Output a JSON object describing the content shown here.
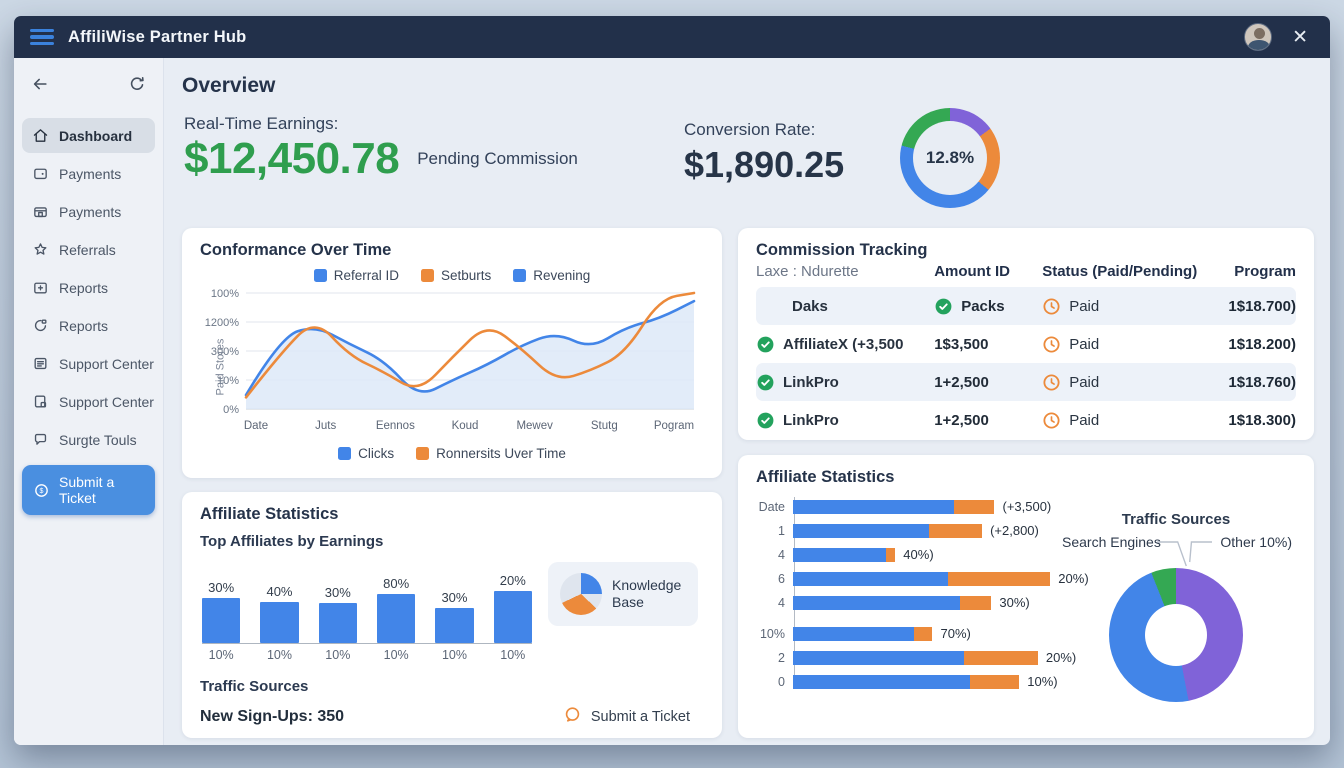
{
  "titlebar": {
    "title": "AffiliWise Partner Hub"
  },
  "sidebar": {
    "items": [
      {
        "icon": "home",
        "label": "Dashboard",
        "active": true
      },
      {
        "icon": "wallet",
        "label": "Payments",
        "active": false
      },
      {
        "icon": "bank",
        "label": "Payments",
        "active": false
      },
      {
        "icon": "star",
        "label": "Referrals",
        "active": false
      },
      {
        "icon": "folder",
        "label": "Reports",
        "active": false
      },
      {
        "icon": "cloud",
        "label": "Reports",
        "active": false
      },
      {
        "icon": "doc",
        "label": "Support Center",
        "active": false
      },
      {
        "icon": "copy",
        "label": "Support Center",
        "active": false
      },
      {
        "icon": "chat",
        "label": "Surgte Touls",
        "active": false
      }
    ],
    "cta": {
      "icon": "ticket",
      "label": "Submit a Ticket"
    }
  },
  "overview": {
    "title": "Overview",
    "earnings_label": "Real-Time Earnings:",
    "earnings_value": "$12,450.78",
    "earnings_note": "Pending Commission",
    "conversion_label": "Conversion Rate:",
    "conversion_value": "$1,890.25"
  },
  "commission": {
    "title": "Commission Tracking",
    "columns": [
      "Laxe : Ndurette",
      "Amount ID",
      "Status (Paid/Pending)",
      "Program"
    ],
    "rows": [
      {
        "name": "Daks",
        "name_check": false,
        "amount": "Packs",
        "amount_check": true,
        "status": "Paid",
        "program": "1$18.700)"
      },
      {
        "name": "AffiliateX (+3,500",
        "name_check": true,
        "amount": "1$3,500",
        "amount_check": false,
        "status": "Paid",
        "program": "1$18.200)"
      },
      {
        "name": "LinkPro",
        "name_check": true,
        "amount": "1+2,500",
        "amount_check": false,
        "status": "Paid",
        "program": "1$18.760)"
      },
      {
        "name": "LinkPro",
        "name_check": true,
        "amount": "1+2,500",
        "amount_check": false,
        "status": "Paid",
        "program": "1$18.300)"
      }
    ]
  },
  "affiliate_left": {
    "title": "Affiliate Statistics",
    "subtitle": "Top Affiliates by Earnings",
    "knowledge_label": "Knowledge Base",
    "traffic_title": "Traffic Sources",
    "signups_text": "New Sign-Ups: 350",
    "ticket_label": "Submit a Ticket"
  },
  "affiliate_right": {
    "title": "Affiliate Statistics",
    "donut_title": "Traffic Sources",
    "callout_left": "Search Engines",
    "callout_right": "Other 10%)"
  },
  "colors": {
    "blue": "#4285e8",
    "orange": "#ec8a3b",
    "green": "#34a853",
    "purple": "#8063d8",
    "money_green": "#2f9e4e",
    "navy": "#22304a"
  },
  "chart_data": [
    {
      "id": "conformance",
      "type": "line",
      "title": "Conformance Over Time",
      "legend_top": [
        {
          "label": "Referral ID",
          "color": "#4285e8"
        },
        {
          "label": "Setburts",
          "color": "#ec8a3b"
        },
        {
          "label": "Revening",
          "color": "#4285e8"
        }
      ],
      "legend_bottom": [
        {
          "label": "Clicks",
          "color": "#4285e8"
        },
        {
          "label": "Ronnersits Uver Time",
          "color": "#ec8a3b"
        }
      ],
      "x_labels": [
        "Date",
        "Juts",
        "Eennos",
        "Koud",
        "Mewev",
        "Stutg",
        "Pogram"
      ],
      "y_tick_labels_bottom_to_top": [
        "0%",
        "10%",
        "300%",
        "1200%",
        "100%"
      ],
      "ylabel": "Paid Stores",
      "ylim": [
        0,
        100
      ],
      "grid": true,
      "series": [
        {
          "name": "Clicks",
          "color": "#4285e8",
          "area_fill": true,
          "values": [
            12,
            62,
            72,
            56,
            42,
            10,
            25,
            38,
            55,
            66,
            52,
            70,
            78,
            93
          ]
        },
        {
          "name": "Ronnersits Uver Time",
          "color": "#ec8a3b",
          "area_fill": false,
          "values": [
            10,
            48,
            78,
            46,
            32,
            14,
            45,
            74,
            52,
            24,
            33,
            48,
            95,
            100
          ]
        }
      ]
    },
    {
      "id": "top_affiliates",
      "type": "bar",
      "title": "Top Affiliates by Earnings",
      "bar_color": "#4285e8",
      "top_labels": [
        "30%",
        "40%",
        "30%",
        "80%",
        "30%",
        "20%"
      ],
      "bottom_labels": [
        "10%",
        "10%",
        "10%",
        "10%",
        "10%",
        "10%"
      ],
      "values_pct_of_max": [
        86,
        78,
        76,
        94,
        68,
        100
      ]
    },
    {
      "id": "affiliate_stats_hbar",
      "type": "bar",
      "orientation": "horizontal",
      "stacked": true,
      "series_colors": {
        "blue": "#4285e8",
        "orange": "#ec8a3b"
      },
      "rows": [
        {
          "label": "Date",
          "blue": 52,
          "orange": 13,
          "annotation": "(+3,500)"
        },
        {
          "label": "1",
          "blue": 44,
          "orange": 17,
          "annotation": "(+2,800)"
        },
        {
          "label": "4",
          "blue": 30,
          "orange": 3,
          "annotation": "40%)"
        },
        {
          "label": "6",
          "blue": 50,
          "orange": 33,
          "annotation": "20%)"
        },
        {
          "label": "4",
          "blue": 54,
          "orange": 10,
          "annotation": "30%)"
        },
        {
          "label": "10%",
          "blue": 39,
          "orange": 6,
          "annotation": "70%)"
        },
        {
          "label": "2",
          "blue": 55,
          "orange": 24,
          "annotation": "20%)"
        },
        {
          "label": "0",
          "blue": 57,
          "orange": 16,
          "annotation": "10%)"
        }
      ]
    },
    {
      "id": "conversion_donut",
      "type": "pie",
      "center_label": "12.8%",
      "segments": [
        {
          "label": "purple",
          "value": 15,
          "color": "#8063d8"
        },
        {
          "label": "orange",
          "value": 21,
          "color": "#ec8a3b"
        },
        {
          "label": "blue",
          "value": 43,
          "color": "#4285e8"
        },
        {
          "label": "green",
          "value": 21,
          "color": "#34a853"
        }
      ]
    },
    {
      "id": "traffic_donut",
      "type": "pie",
      "title": "Traffic Sources",
      "segments": [
        {
          "label": "Other 10%)",
          "value": 47,
          "color": "#8063d8"
        },
        {
          "label": "",
          "value": 47,
          "color": "#4285e8"
        },
        {
          "label": "Search Engines",
          "value": 6,
          "color": "#34a853"
        }
      ]
    },
    {
      "id": "knowledge_pie",
      "type": "pie",
      "segments": [
        {
          "label": "blue",
          "value": 25,
          "color": "#4285e8"
        },
        {
          "label": "gray",
          "value": 12,
          "color": "#dfe5ee"
        },
        {
          "label": "orange",
          "value": 31,
          "color": "#ec8a3b"
        },
        {
          "label": "gray2",
          "value": 32,
          "color": "#dfe5ee"
        }
      ]
    }
  ]
}
